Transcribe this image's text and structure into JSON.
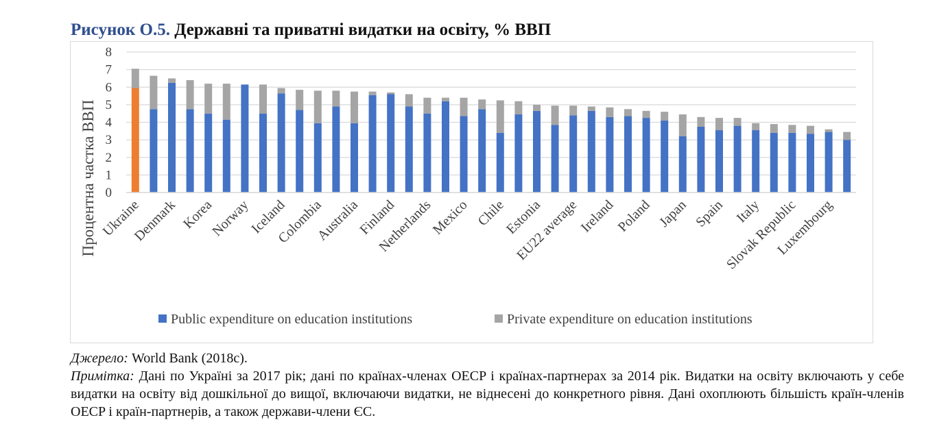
{
  "figure": {
    "number": "Рисунок О.5.",
    "title": "Державні та приватні видатки на освіту, % ВВП"
  },
  "chart_data": {
    "type": "bar",
    "stacked": true,
    "ylabel": "Процентна частка ВВП",
    "ylim": [
      0,
      8
    ],
    "yticks": [
      0,
      1,
      2,
      3,
      4,
      5,
      6,
      7,
      8
    ],
    "grid": true,
    "legend_position": "bottom",
    "categories": [
      "Ukraine",
      "",
      "Denmark",
      "",
      "Korea",
      "",
      "Norway",
      "",
      "Iceland",
      "",
      "Colombia",
      "",
      "Australia",
      "",
      "Finland",
      "",
      "Netherlands",
      "",
      "Mexico",
      "",
      "Chile",
      "",
      "Estonia",
      "",
      "EU22 average",
      "",
      "Ireland",
      "",
      "Poland",
      "",
      "Japan",
      "",
      "Spain",
      "",
      "Italy",
      "",
      "Slovak Republic",
      "",
      "Luxembourg",
      ""
    ],
    "series": [
      {
        "name": "Public expenditure on education institutions",
        "color": "#4472c4",
        "values": [
          5.95,
          4.75,
          6.25,
          4.75,
          4.5,
          4.15,
          6.15,
          4.5,
          5.65,
          4.7,
          3.95,
          4.9,
          3.95,
          5.55,
          5.6,
          4.9,
          4.5,
          5.2,
          4.35,
          4.75,
          3.4,
          4.45,
          4.65,
          3.85,
          4.4,
          4.65,
          4.3,
          4.35,
          4.25,
          4.1,
          3.2,
          3.75,
          3.55,
          3.8,
          3.55,
          3.4,
          3.4,
          3.35,
          3.45,
          3.0
        ]
      },
      {
        "name": "Private expenditure on education institutions",
        "color": "#a5a5a5",
        "values": [
          1.1,
          1.9,
          0.25,
          1.65,
          1.7,
          2.05,
          0.0,
          1.65,
          0.3,
          1.15,
          1.85,
          0.9,
          1.8,
          0.2,
          0.1,
          0.7,
          0.9,
          0.2,
          1.05,
          0.55,
          1.85,
          0.75,
          0.35,
          1.1,
          0.55,
          0.25,
          0.55,
          0.4,
          0.4,
          0.5,
          1.25,
          0.55,
          0.7,
          0.45,
          0.4,
          0.5,
          0.45,
          0.45,
          0.15,
          0.45
        ]
      }
    ],
    "highlight": {
      "index": 0,
      "color": "#ed7d31",
      "private_color": "#a5a5a5"
    }
  },
  "notes": {
    "source_label": "Джерело:",
    "source_text": "World Bank (2018c).",
    "note_label": "Примітка:",
    "note_text": "Дані по Україні за 2017 рік; дані по країнах-членах OECP і країнах-партнерах за 2014 рік. Видатки на освіту включають у себе видатки на освіту від дошкільної до вищої, включаючи видатки, не віднесені до конкретного рівня. Дані охоплюють більшість країн-членів OECP і країн-партнерів, а також держави-члени ЄС."
  }
}
